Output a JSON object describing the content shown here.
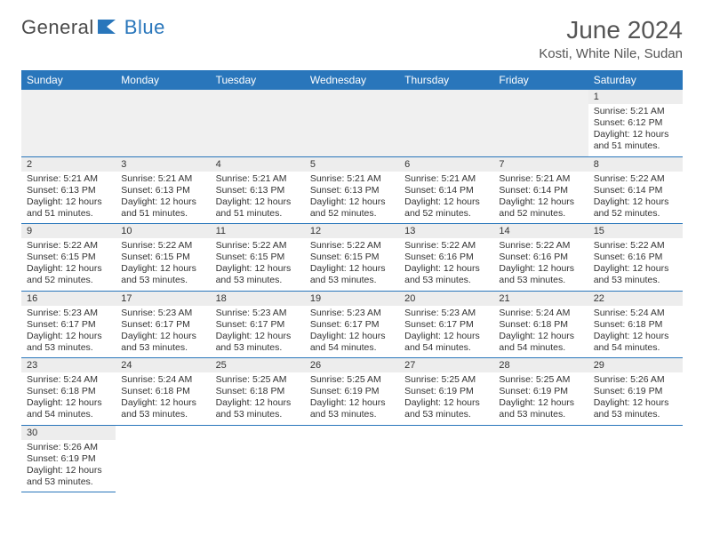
{
  "logo": {
    "text1": "General",
    "text2": "Blue"
  },
  "title": {
    "month": "June 2024",
    "location": "Kosti, White Nile, Sudan"
  },
  "weekdays": [
    "Sunday",
    "Monday",
    "Tuesday",
    "Wednesday",
    "Thursday",
    "Friday",
    "Saturday"
  ],
  "colors": {
    "header_bg": "#2976bb",
    "header_text": "#ffffff",
    "daynum_bg": "#ededed",
    "border": "#2976bb",
    "logo_blue": "#2976bb",
    "logo_gray": "#4a4a4a"
  },
  "days": {
    "1": {
      "sunrise": "5:21 AM",
      "sunset": "6:12 PM",
      "daylight": "12 hours and 51 minutes."
    },
    "2": {
      "sunrise": "5:21 AM",
      "sunset": "6:13 PM",
      "daylight": "12 hours and 51 minutes."
    },
    "3": {
      "sunrise": "5:21 AM",
      "sunset": "6:13 PM",
      "daylight": "12 hours and 51 minutes."
    },
    "4": {
      "sunrise": "5:21 AM",
      "sunset": "6:13 PM",
      "daylight": "12 hours and 51 minutes."
    },
    "5": {
      "sunrise": "5:21 AM",
      "sunset": "6:13 PM",
      "daylight": "12 hours and 52 minutes."
    },
    "6": {
      "sunrise": "5:21 AM",
      "sunset": "6:14 PM",
      "daylight": "12 hours and 52 minutes."
    },
    "7": {
      "sunrise": "5:21 AM",
      "sunset": "6:14 PM",
      "daylight": "12 hours and 52 minutes."
    },
    "8": {
      "sunrise": "5:22 AM",
      "sunset": "6:14 PM",
      "daylight": "12 hours and 52 minutes."
    },
    "9": {
      "sunrise": "5:22 AM",
      "sunset": "6:15 PM",
      "daylight": "12 hours and 52 minutes."
    },
    "10": {
      "sunrise": "5:22 AM",
      "sunset": "6:15 PM",
      "daylight": "12 hours and 53 minutes."
    },
    "11": {
      "sunrise": "5:22 AM",
      "sunset": "6:15 PM",
      "daylight": "12 hours and 53 minutes."
    },
    "12": {
      "sunrise": "5:22 AM",
      "sunset": "6:15 PM",
      "daylight": "12 hours and 53 minutes."
    },
    "13": {
      "sunrise": "5:22 AM",
      "sunset": "6:16 PM",
      "daylight": "12 hours and 53 minutes."
    },
    "14": {
      "sunrise": "5:22 AM",
      "sunset": "6:16 PM",
      "daylight": "12 hours and 53 minutes."
    },
    "15": {
      "sunrise": "5:22 AM",
      "sunset": "6:16 PM",
      "daylight": "12 hours and 53 minutes."
    },
    "16": {
      "sunrise": "5:23 AM",
      "sunset": "6:17 PM",
      "daylight": "12 hours and 53 minutes."
    },
    "17": {
      "sunrise": "5:23 AM",
      "sunset": "6:17 PM",
      "daylight": "12 hours and 53 minutes."
    },
    "18": {
      "sunrise": "5:23 AM",
      "sunset": "6:17 PM",
      "daylight": "12 hours and 53 minutes."
    },
    "19": {
      "sunrise": "5:23 AM",
      "sunset": "6:17 PM",
      "daylight": "12 hours and 54 minutes."
    },
    "20": {
      "sunrise": "5:23 AM",
      "sunset": "6:17 PM",
      "daylight": "12 hours and 54 minutes."
    },
    "21": {
      "sunrise": "5:24 AM",
      "sunset": "6:18 PM",
      "daylight": "12 hours and 54 minutes."
    },
    "22": {
      "sunrise": "5:24 AM",
      "sunset": "6:18 PM",
      "daylight": "12 hours and 54 minutes."
    },
    "23": {
      "sunrise": "5:24 AM",
      "sunset": "6:18 PM",
      "daylight": "12 hours and 54 minutes."
    },
    "24": {
      "sunrise": "5:24 AM",
      "sunset": "6:18 PM",
      "daylight": "12 hours and 53 minutes."
    },
    "25": {
      "sunrise": "5:25 AM",
      "sunset": "6:18 PM",
      "daylight": "12 hours and 53 minutes."
    },
    "26": {
      "sunrise": "5:25 AM",
      "sunset": "6:19 PM",
      "daylight": "12 hours and 53 minutes."
    },
    "27": {
      "sunrise": "5:25 AM",
      "sunset": "6:19 PM",
      "daylight": "12 hours and 53 minutes."
    },
    "28": {
      "sunrise": "5:25 AM",
      "sunset": "6:19 PM",
      "daylight": "12 hours and 53 minutes."
    },
    "29": {
      "sunrise": "5:26 AM",
      "sunset": "6:19 PM",
      "daylight": "12 hours and 53 minutes."
    },
    "30": {
      "sunrise": "5:26 AM",
      "sunset": "6:19 PM",
      "daylight": "12 hours and 53 minutes."
    }
  },
  "labels": {
    "sunrise": "Sunrise:",
    "sunset": "Sunset:",
    "daylight": "Daylight:"
  },
  "layout": {
    "first_day_column": 6,
    "total_days": 30
  }
}
